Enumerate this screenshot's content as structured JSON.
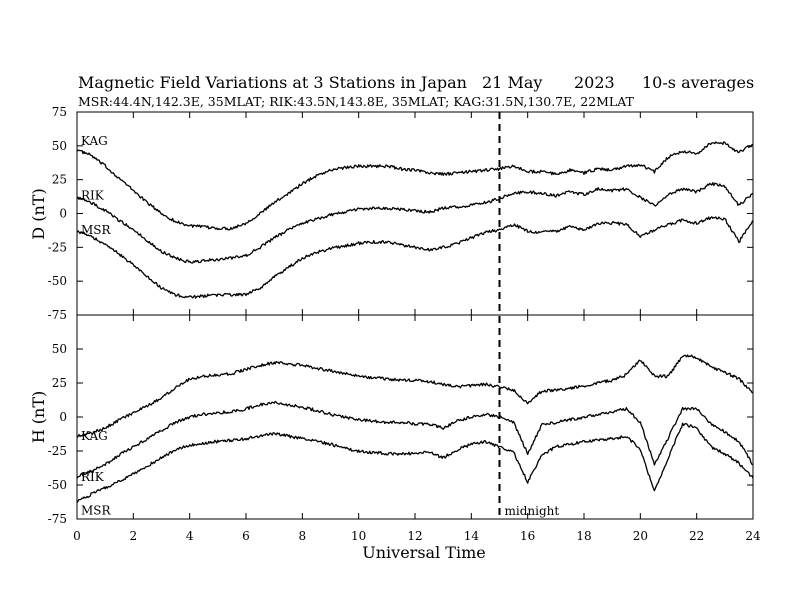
{
  "header": {
    "title": "Magnetic Field Variations at 3 Stations in Japan",
    "date": "21  May",
    "year": "2023",
    "averaging": "10-s averages",
    "stations_line": "MSR:44.4N,142.3E, 35MLAT;  RIK:43.5N,143.8E, 35MLAT;  KAG:31.5N,130.7E, 22MLAT"
  },
  "chart_data": [
    {
      "type": "line",
      "panel": "top",
      "ylabel": "D (nT)",
      "xlim": [
        0,
        24
      ],
      "ylim": [
        -75,
        75
      ],
      "yticks": [
        75,
        50,
        25,
        0,
        -25,
        -50,
        -75
      ],
      "series": [
        {
          "name": "KAG",
          "x": [
            0,
            0.5,
            1,
            1.5,
            2,
            2.5,
            3,
            3.5,
            4,
            4.5,
            5,
            5.5,
            6,
            6.5,
            7,
            7.5,
            8,
            8.5,
            9,
            9.5,
            10,
            10.5,
            11,
            11.5,
            12,
            12.5,
            13,
            13.5,
            14,
            14.5,
            15,
            15.5,
            16,
            16.5,
            17,
            17.5,
            18,
            18.5,
            19,
            19.5,
            20,
            20.5,
            21,
            21.5,
            22,
            22.5,
            23,
            23.5,
            24
          ],
          "values": [
            47,
            43,
            35,
            26,
            17,
            8,
            0,
            -6,
            -9,
            -10,
            -11,
            -11,
            -7,
            0,
            8,
            15,
            22,
            28,
            32,
            34,
            35,
            35,
            35,
            33,
            32,
            30,
            29,
            30,
            31,
            32,
            33,
            35,
            31,
            31,
            29,
            32,
            30,
            33,
            32,
            35,
            36,
            31,
            42,
            46,
            44,
            52,
            52,
            45,
            51
          ]
        },
        {
          "name": "RIK",
          "x": [
            0,
            0.5,
            1,
            1.5,
            2,
            2.5,
            3,
            3.5,
            4,
            4.5,
            5,
            5.5,
            6,
            6.5,
            7,
            7.5,
            8,
            8.5,
            9,
            9.5,
            10,
            10.5,
            11,
            11.5,
            12,
            12.5,
            13,
            13.5,
            14,
            14.5,
            15,
            15.5,
            16,
            16.5,
            17,
            17.5,
            18,
            18.5,
            19,
            19.5,
            20,
            20.5,
            21,
            21.5,
            22,
            22.5,
            23,
            23.5,
            24
          ],
          "values": [
            12,
            8,
            2,
            -5,
            -12,
            -20,
            -28,
            -33,
            -36,
            -35,
            -34,
            -33,
            -31,
            -25,
            -18,
            -12,
            -7,
            -4,
            -1,
            1,
            3,
            4,
            4,
            3,
            2,
            1,
            4,
            5,
            6,
            8,
            11,
            15,
            16,
            15,
            13,
            16,
            14,
            18,
            17,
            18,
            12,
            6,
            14,
            18,
            16,
            22,
            20,
            6,
            15
          ]
        },
        {
          "name": "MSR",
          "x": [
            0,
            0.5,
            1,
            1.5,
            2,
            2.5,
            3,
            3.5,
            4,
            4.5,
            5,
            5.5,
            6,
            6.5,
            7,
            7.5,
            8,
            8.5,
            9,
            9.5,
            10,
            10.5,
            11,
            11.5,
            12,
            12.5,
            13,
            13.5,
            14,
            14.5,
            15,
            15.5,
            16,
            16.5,
            17,
            17.5,
            18,
            18.5,
            19,
            19.5,
            20,
            20.5,
            21,
            21.5,
            22,
            22.5,
            23,
            23.5,
            24
          ],
          "values": [
            -13,
            -17,
            -23,
            -30,
            -38,
            -47,
            -55,
            -60,
            -62,
            -61,
            -60,
            -60,
            -60,
            -55,
            -47,
            -40,
            -33,
            -29,
            -26,
            -24,
            -22,
            -21,
            -21,
            -23,
            -25,
            -27,
            -25,
            -22,
            -18,
            -14,
            -12,
            -8,
            -13,
            -14,
            -13,
            -10,
            -12,
            -7,
            -7,
            -8,
            -17,
            -12,
            -8,
            -5,
            -7,
            -3,
            -4,
            -21,
            -5
          ]
        }
      ]
    },
    {
      "type": "line",
      "panel": "bottom",
      "ylabel": "H (nT)",
      "xlabel": "Universal Time",
      "xlim": [
        0,
        24
      ],
      "xticks": [
        0,
        2,
        4,
        6,
        8,
        10,
        12,
        14,
        16,
        18,
        20,
        22,
        24
      ],
      "ylim": [
        -75,
        75
      ],
      "yticks": [
        75,
        50,
        25,
        0,
        -25,
        -50,
        -75
      ],
      "series": [
        {
          "name": "KAG",
          "x": [
            0,
            0.5,
            1,
            1.5,
            2,
            2.5,
            3,
            3.5,
            4,
            4.5,
            5,
            5.5,
            6,
            6.5,
            7,
            7.5,
            8,
            8.5,
            9,
            9.5,
            10,
            10.5,
            11,
            11.5,
            12,
            12.5,
            13,
            13.5,
            14,
            14.5,
            15,
            15.5,
            16,
            16.5,
            17,
            17.5,
            18,
            18.5,
            19,
            19.5,
            20,
            20.5,
            21,
            21.5,
            22,
            22.5,
            23,
            23.5,
            24
          ],
          "values": [
            -14,
            -12,
            -8,
            -2,
            3,
            8,
            14,
            22,
            28,
            30,
            31,
            32,
            35,
            38,
            40,
            39,
            38,
            36,
            34,
            32,
            30,
            29,
            28,
            27,
            27,
            26,
            24,
            22,
            23,
            24,
            22,
            20,
            10,
            19,
            20,
            21,
            23,
            25,
            27,
            31,
            42,
            30,
            30,
            45,
            44,
            37,
            33,
            28,
            18
          ]
        },
        {
          "name": "RIK",
          "x": [
            0,
            0.5,
            1,
            1.5,
            2,
            2.5,
            3,
            3.5,
            4,
            4.5,
            5,
            5.5,
            6,
            6.5,
            7,
            7.5,
            8,
            8.5,
            9,
            9.5,
            10,
            10.5,
            11,
            11.5,
            12,
            12.5,
            13,
            13.5,
            14,
            14.5,
            15,
            15.5,
            16,
            16.5,
            17,
            17.5,
            18,
            18.5,
            19,
            19.5,
            20,
            20.5,
            21,
            21.5,
            22,
            22.5,
            23,
            23.5,
            24
          ],
          "values": [
            -44,
            -40,
            -35,
            -28,
            -22,
            -16,
            -10,
            -4,
            0,
            2,
            3,
            4,
            6,
            9,
            11,
            9,
            7,
            5,
            2,
            0,
            -2,
            -3,
            -4,
            -4,
            -5,
            -5,
            -8,
            -3,
            0,
            2,
            0,
            -4,
            -27,
            -6,
            -4,
            -2,
            0,
            2,
            4,
            6,
            -4,
            -35,
            -15,
            6,
            6,
            -5,
            -11,
            -18,
            -35
          ]
        },
        {
          "name": "MSR",
          "x": [
            0,
            0.5,
            1,
            1.5,
            2,
            2.5,
            3,
            3.5,
            4,
            4.5,
            5,
            5.5,
            6,
            6.5,
            7,
            7.5,
            8,
            8.5,
            9,
            9.5,
            10,
            10.5,
            11,
            11.5,
            12,
            12.5,
            13,
            13.5,
            14,
            14.5,
            15,
            15.5,
            16,
            16.5,
            17,
            17.5,
            18,
            18.5,
            19,
            19.5,
            20,
            20.5,
            21,
            21.5,
            22,
            22.5,
            23,
            23.5,
            24
          ],
          "values": [
            -62,
            -57,
            -52,
            -47,
            -42,
            -36,
            -30,
            -24,
            -21,
            -19,
            -18,
            -17,
            -16,
            -14,
            -12,
            -14,
            -16,
            -18,
            -20,
            -23,
            -25,
            -26,
            -27,
            -27,
            -27,
            -26,
            -30,
            -24,
            -20,
            -18,
            -22,
            -26,
            -48,
            -28,
            -22,
            -20,
            -18,
            -17,
            -16,
            -14,
            -24,
            -55,
            -30,
            -5,
            -8,
            -22,
            -27,
            -34,
            -45
          ]
        }
      ]
    }
  ],
  "annotations": {
    "midnight_label": "midnight",
    "midnight_x": 15
  }
}
